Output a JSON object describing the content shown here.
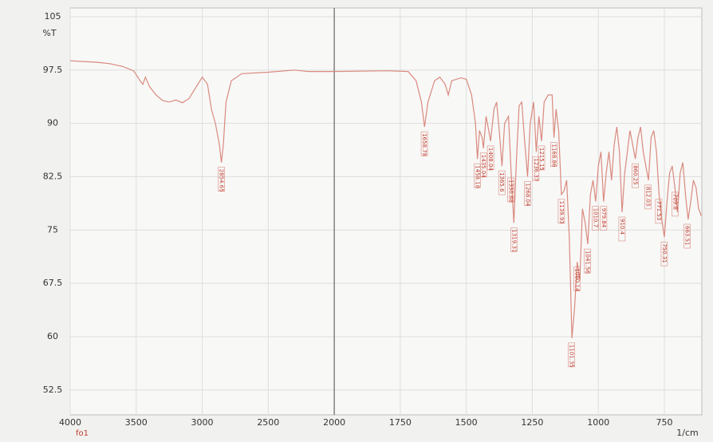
{
  "chart_data": {
    "type": "line",
    "y_label": "%T",
    "x_label": "1/cm",
    "sample_label": "fo1",
    "xlim": [
      4000,
      608
    ],
    "x_break": 2000,
    "x_break_scale": 2,
    "ylim": [
      49,
      105
    ],
    "xticks": [
      4000,
      3500,
      3000,
      2500,
      2000,
      1750,
      1500,
      1250,
      1000,
      750
    ],
    "yticks": [
      105,
      97.5,
      90,
      82.5,
      75,
      67.5,
      60,
      52.5
    ],
    "grid": true,
    "x": [
      4000,
      3900,
      3800,
      3700,
      3600,
      3520,
      3470,
      3450,
      3430,
      3400,
      3350,
      3300,
      3250,
      3200,
      3150,
      3100,
      3050,
      3000,
      2960,
      2930,
      2900,
      2870,
      2855,
      2840,
      2820,
      2780,
      2700,
      2500,
      2300,
      2200,
      2000,
      1800,
      1720,
      1690,
      1670,
      1658,
      1645,
      1620,
      1600,
      1580,
      1568,
      1555,
      1520,
      1500,
      1480,
      1465,
      1458,
      1450,
      1440,
      1435,
      1425,
      1415,
      1408,
      1395,
      1385,
      1375,
      1365,
      1355,
      1340,
      1330,
      1320,
      1310,
      1300,
      1290,
      1280,
      1268,
      1258,
      1245,
      1235,
      1225,
      1215,
      1205,
      1190,
      1175,
      1168,
      1160,
      1150,
      1140,
      1130,
      1120,
      1110,
      1100,
      1090,
      1080,
      1070,
      1060,
      1050,
      1040,
      1030,
      1020,
      1010,
      1000,
      990,
      980,
      970,
      960,
      950,
      940,
      930,
      920,
      910,
      900,
      890,
      880,
      870,
      860,
      850,
      840,
      830,
      820,
      810,
      800,
      790,
      780,
      770,
      760,
      750,
      740,
      730,
      720,
      710,
      700,
      690,
      680,
      670,
      660,
      650,
      640,
      630,
      620,
      610
    ],
    "series": [
      {
        "color": "#d98a7e",
        "values": [
          98.8,
          98.7,
          98.6,
          98.4,
          98.0,
          97.4,
          96.0,
          95.5,
          96.5,
          95.2,
          94.0,
          93.2,
          93.0,
          93.3,
          92.9,
          93.5,
          95.0,
          96.5,
          95.5,
          92.0,
          90.0,
          87.0,
          84.5,
          87.0,
          93.0,
          96.0,
          97.0,
          97.2,
          97.5,
          97.3,
          97.3,
          97.4,
          97.3,
          96.0,
          93.0,
          89.5,
          93.0,
          96.0,
          96.5,
          95.5,
          94.0,
          96.0,
          96.4,
          96.2,
          94.0,
          90.0,
          85.0,
          89.0,
          88.0,
          86.5,
          91.0,
          89.0,
          87.5,
          92.0,
          93.0,
          89.0,
          84.0,
          90.0,
          91.0,
          83.0,
          76.0,
          85.0,
          92.5,
          93.0,
          88.0,
          82.5,
          90.0,
          93.0,
          86.0,
          91.0,
          87.5,
          93.0,
          94.0,
          94.0,
          88.0,
          92.0,
          89.0,
          80.0,
          80.5,
          82.0,
          74.0,
          59.8,
          64.0,
          70.5,
          68.0,
          78.0,
          76.0,
          73.0,
          80.0,
          82.0,
          79.0,
          84.0,
          86.0,
          79.0,
          83.0,
          86.0,
          82.0,
          87.0,
          89.5,
          86.0,
          77.5,
          83.0,
          86.0,
          89.0,
          87.0,
          85.0,
          88.0,
          89.5,
          86.0,
          84.0,
          82.0,
          88.0,
          89.0,
          86.0,
          80.0,
          76.5,
          74.0,
          79.0,
          83.0,
          84.0,
          81.0,
          77.5,
          83.0,
          84.5,
          80.0,
          76.5,
          79.0,
          82.0,
          81.0,
          78.0,
          77.0
        ]
      }
    ],
    "peaks": [
      {
        "x": 2854.65,
        "y": 84.5
      },
      {
        "x": 1658.78,
        "y": 89.5
      },
      {
        "x": 1458.18,
        "y": 85
      },
      {
        "x": 1435.04,
        "y": 86.5
      },
      {
        "x": 1408.04,
        "y": 87.5
      },
      {
        "x": 1365.6,
        "y": 84
      },
      {
        "x": 1330.88,
        "y": 83
      },
      {
        "x": 1319.31,
        "y": 76
      },
      {
        "x": 1268.04,
        "y": 82.5
      },
      {
        "x": 1236.37,
        "y": 86
      },
      {
        "x": 1215.15,
        "y": 87.5
      },
      {
        "x": 1168.86,
        "y": 88
      },
      {
        "x": 1139.93,
        "y": 80
      },
      {
        "x": 1101.35,
        "y": 59.8
      },
      {
        "x": 1080.14,
        "y": 70.5
      },
      {
        "x": 1041.56,
        "y": 73
      },
      {
        "x": 1010.7,
        "y": 79
      },
      {
        "x": 979.84,
        "y": 79
      },
      {
        "x": 910.4,
        "y": 77.5
      },
      {
        "x": 860.25,
        "y": 85
      },
      {
        "x": 812.03,
        "y": 82
      },
      {
        "x": 771.53,
        "y": 80
      },
      {
        "x": 750.31,
        "y": 74
      },
      {
        "x": 709.8,
        "y": 81
      },
      {
        "x": 663.51,
        "y": 76.5
      }
    ]
  }
}
